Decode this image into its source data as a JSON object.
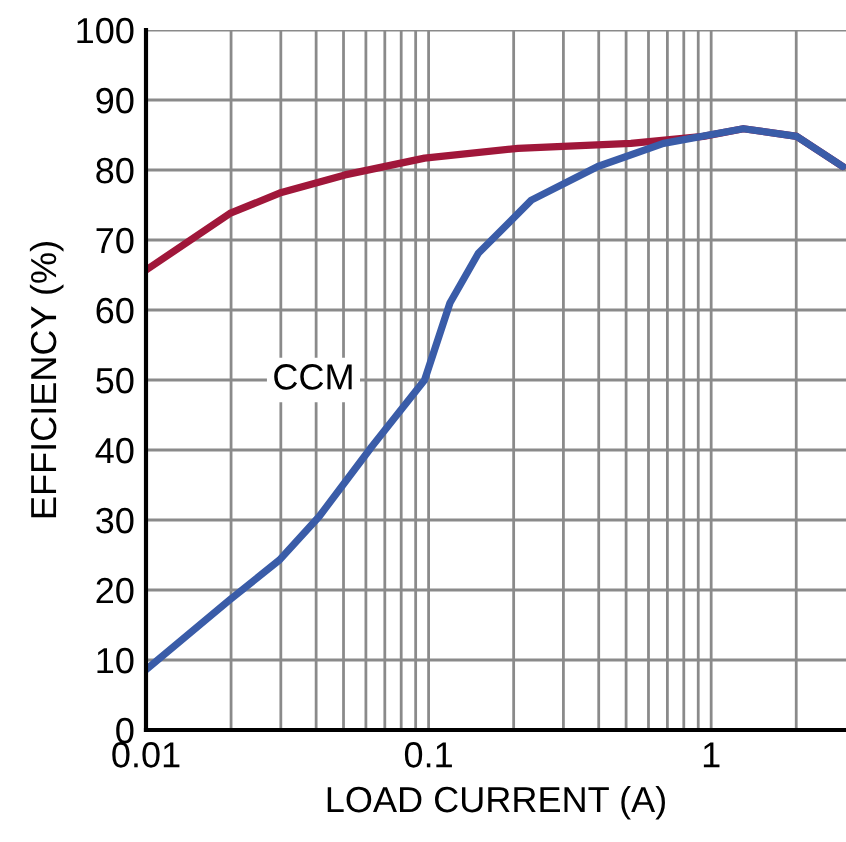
{
  "chart_data": {
    "type": "line",
    "xlabel": "LOAD CURRENT (A)",
    "ylabel": "EFFICIENCY (%)",
    "log": "x",
    "grid": true,
    "legend": false,
    "line_style": "solid",
    "marker": "none",
    "xlim": [
      0.01,
      3
    ],
    "ylim": [
      0,
      100
    ],
    "xticks": [
      0.01,
      {
        "value": 0.02,
        "label": null
      },
      {
        "value": 0.03,
        "label": null
      },
      {
        "value": 0.04,
        "label": null
      },
      {
        "value": 0.05,
        "label": null
      },
      {
        "value": 0.06,
        "label": null
      },
      {
        "value": 0.07,
        "label": null
      },
      {
        "value": 0.08,
        "label": null
      },
      {
        "value": 0.09,
        "label": null
      },
      0.1,
      {
        "value": 0.2,
        "label": null
      },
      {
        "value": 0.3,
        "label": null
      },
      {
        "value": 0.4,
        "label": null
      },
      {
        "value": 0.5,
        "label": null
      },
      {
        "value": 0.6,
        "label": null
      },
      {
        "value": 0.7,
        "label": null
      },
      {
        "value": 0.8,
        "label": null
      },
      {
        "value": 0.9,
        "label": null
      },
      1,
      {
        "value": 2,
        "label": null
      }
    ],
    "yticks": [
      0,
      10,
      20,
      30,
      40,
      50,
      60,
      70,
      80,
      90,
      100
    ],
    "series": [
      {
        "color": "#a0173a",
        "x": [
          0.01,
          0.0198,
          0.0297,
          0.0506,
          0.0968,
          0.207,
          0.52,
          0.938,
          1.3,
          2.01,
          2.92
        ],
        "values": [
          65.7,
          73.8,
          76.7,
          79.3,
          81.7,
          83.1,
          83.8,
          84.8,
          85.9,
          84.8,
          80.5
        ]
      },
      {
        "name": "CCM",
        "color": "#3a5ca8",
        "x": [
          0.01,
          0.0198,
          0.0297,
          0.041,
          0.063,
          0.0968,
          0.119,
          0.15,
          0.231,
          0.397,
          0.678,
          1.3,
          2.01,
          2.92
        ],
        "values": [
          8.6,
          18.6,
          24.3,
          30.5,
          40.5,
          50,
          61,
          68.1,
          75.7,
          80.5,
          83.8,
          85.9,
          84.8,
          80.5
        ]
      }
    ]
  }
}
